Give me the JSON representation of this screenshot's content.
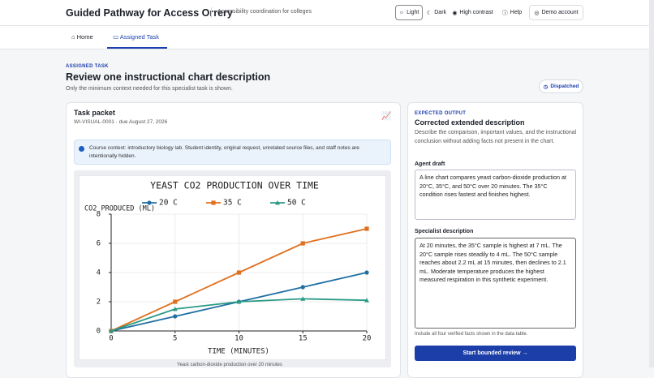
{
  "header": {
    "title": "Guided Pathway for Access Orrery",
    "subtitle": "Accessibility coordination for colleges",
    "theme_options": [
      "Light",
      "Dark",
      "High contrast"
    ],
    "help": "Help",
    "account": "Demo account"
  },
  "nav": {
    "tabs": [
      "Home",
      "Assigned Task"
    ]
  },
  "page": {
    "eyebrow": "ASSIGNED TASK",
    "title": "Review one instructional chart description",
    "subtitle": "Only the minimum context needed for this specialist task is shown.",
    "status": "Dispatched"
  },
  "packet": {
    "title": "Task packet",
    "meta": "WI-VISUAL-0001 · due August 27, 2026",
    "notice": "Course context: introductory biology lab. Student identity, original request, unrelated source files, and staff notes are intentionally hidden.",
    "caption": "Yeast carbon-dioxide production over 20 minutes"
  },
  "chart": {
    "type": "line",
    "title": "YEAST CO2 PRODUCTION OVER TIME",
    "x_label": "TIME (MINUTES)",
    "y_label": "CO2 PRODUCED (ML)",
    "x": [
      0,
      5,
      10,
      15,
      20
    ],
    "series": [
      {
        "name": "20 C",
        "color": "#1f6fa3",
        "marker": "circle",
        "values": [
          0,
          1,
          2,
          3,
          4
        ]
      },
      {
        "name": "35 C",
        "color": "#e0701f",
        "marker": "square",
        "values": [
          0,
          2,
          4,
          6,
          7
        ]
      },
      {
        "name": "50 C",
        "color": "#2a9a85",
        "marker": "triangle",
        "values": [
          0,
          1.5,
          2,
          2.2,
          2.1
        ]
      }
    ],
    "xlim": [
      0,
      20
    ],
    "ylim": [
      0,
      8
    ],
    "xticks": [
      0,
      5,
      10,
      15,
      20
    ],
    "yticks": [
      0,
      2,
      4,
      6,
      8
    ],
    "grid": true
  },
  "output": {
    "eyebrow": "EXPECTED OUTPUT",
    "title": "Corrected extended description",
    "instructions": "Describe the comparison, important values, and the instructional conclusion without adding facts not present in the chart.",
    "draft_label": "Agent draft",
    "draft": "A line chart compares yeast carbon-dioxide production at 20°C, 35°C, and 50°C over 20 minutes. The 35°C condition rises fastest and finishes highest.",
    "specialist_label": "Specialist description",
    "specialist": "At 20 minutes, the 35°C sample is highest at 7 mL. The 20°C sample rises steadily to 4 mL. The 50°C sample reaches about 2.2 mL at 15 minutes, then declines to 2.1 mL. Moderate temperature produces the highest measured respiration in this synthetic experiment.",
    "note": "Include all four verified facts shown in the data table.",
    "button": "Start bounded review →"
  }
}
